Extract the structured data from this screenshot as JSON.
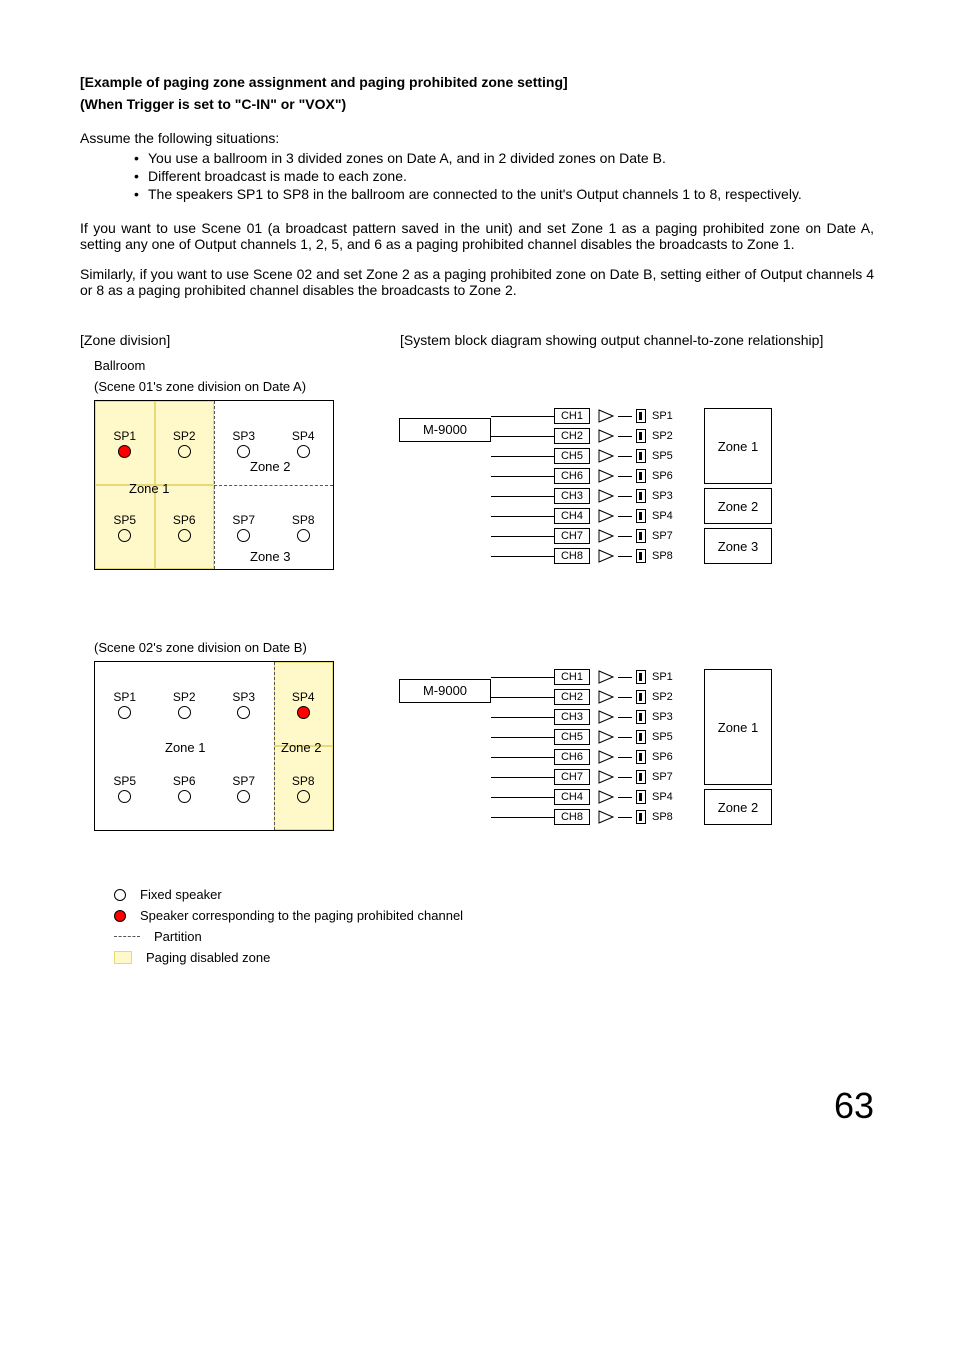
{
  "title1": "[Example of paging zone assignment and paging prohibited zone setting]",
  "title2": "(When Trigger is set to \"C-IN\" or \"VOX\")",
  "intro": "Assume the following situations:",
  "bullets": [
    "You use a ballroom in 3 divided zones on Date A, and in 2 divided zones on Date B.",
    "Different broadcast is made to each zone.",
    "The speakers SP1 to SP8 in the ballroom are connected to the unit's Output channels 1 to 8, respectively."
  ],
  "para1": "If you want to use Scene 01 (a broadcast pattern saved in the unit) and set Zone 1 as a paging prohibited zone on Date A, setting any one of Output channels 1, 2, 5, and 6 as a paging prohibited channel disables the broadcasts to Zone 1.",
  "para2": "Similarly, if you want to use Scene 02 and set Zone 2 as a paging prohibited zone on Date B, setting either of Output channels 4 or 8 as a paging prohibited channel disables the broadcasts to Zone 2.",
  "left_caption": "[Zone division]",
  "right_caption": "[System block diagram showing output channel-to-zone relationship]",
  "ballroom_label": "Ballroom",
  "sceneA_label": "(Scene 01's zone division on Date A)",
  "sceneB_label": "(Scene 02's zone division on Date B)",
  "unit": "M-9000",
  "sceneA": {
    "speakers": [
      {
        "label": "SP1",
        "red": true,
        "shade": true
      },
      {
        "label": "SP2",
        "red": false,
        "shade": true
      },
      {
        "label": "SP3",
        "red": false,
        "shade": false
      },
      {
        "label": "SP4",
        "red": false,
        "shade": false
      },
      {
        "label": "SP5",
        "red": false,
        "shade": true
      },
      {
        "label": "SP6",
        "red": false,
        "shade": true
      },
      {
        "label": "SP7",
        "red": false,
        "shade": false
      },
      {
        "label": "SP8",
        "red": false,
        "shade": false
      }
    ],
    "zones": {
      "z1": "Zone 1",
      "z2": "Zone 2",
      "z3": "Zone 3"
    },
    "channels": [
      {
        "ch": "CH1",
        "sp": "SP1"
      },
      {
        "ch": "CH2",
        "sp": "SP2"
      },
      {
        "ch": "CH5",
        "sp": "SP5"
      },
      {
        "ch": "CH6",
        "sp": "SP6"
      },
      {
        "ch": "CH3",
        "sp": "SP3"
      },
      {
        "ch": "CH4",
        "sp": "SP4"
      },
      {
        "ch": "CH7",
        "sp": "SP7"
      },
      {
        "ch": "CH8",
        "sp": "SP8"
      }
    ],
    "zone_groups": [
      {
        "label": "Zone 1",
        "n": 4
      },
      {
        "label": "Zone 2",
        "n": 2
      },
      {
        "label": "Zone 3",
        "n": 2
      }
    ]
  },
  "sceneB": {
    "speakers": [
      {
        "label": "SP1",
        "red": false,
        "shade": false
      },
      {
        "label": "SP2",
        "red": false,
        "shade": false
      },
      {
        "label": "SP3",
        "red": false,
        "shade": false
      },
      {
        "label": "SP4",
        "red": true,
        "shade": true
      },
      {
        "label": "SP5",
        "red": false,
        "shade": false
      },
      {
        "label": "SP6",
        "red": false,
        "shade": false
      },
      {
        "label": "SP7",
        "red": false,
        "shade": false
      },
      {
        "label": "SP8",
        "red": false,
        "shade": true
      }
    ],
    "zones": {
      "z1": "Zone 1",
      "z2": "Zone 2"
    },
    "channels": [
      {
        "ch": "CH1",
        "sp": "SP1"
      },
      {
        "ch": "CH2",
        "sp": "SP2"
      },
      {
        "ch": "CH3",
        "sp": "SP3"
      },
      {
        "ch": "CH5",
        "sp": "SP5"
      },
      {
        "ch": "CH6",
        "sp": "SP6"
      },
      {
        "ch": "CH7",
        "sp": "SP7"
      },
      {
        "ch": "CH4",
        "sp": "SP4"
      },
      {
        "ch": "CH8",
        "sp": "SP8"
      }
    ],
    "zone_groups": [
      {
        "label": "Zone 1",
        "n": 6
      },
      {
        "label": "Zone 2",
        "n": 2
      }
    ]
  },
  "legend": {
    "fixed": "Fixed speaker",
    "prohib": "Speaker corresponding to the paging prohibited channel",
    "partition": "Partition",
    "disabled": "Paging disabled zone"
  },
  "pagenum": "63",
  "colors": {
    "shade_fill": "#fff9c9",
    "shade_border": "#e8d978",
    "red": "#ff0000"
  }
}
